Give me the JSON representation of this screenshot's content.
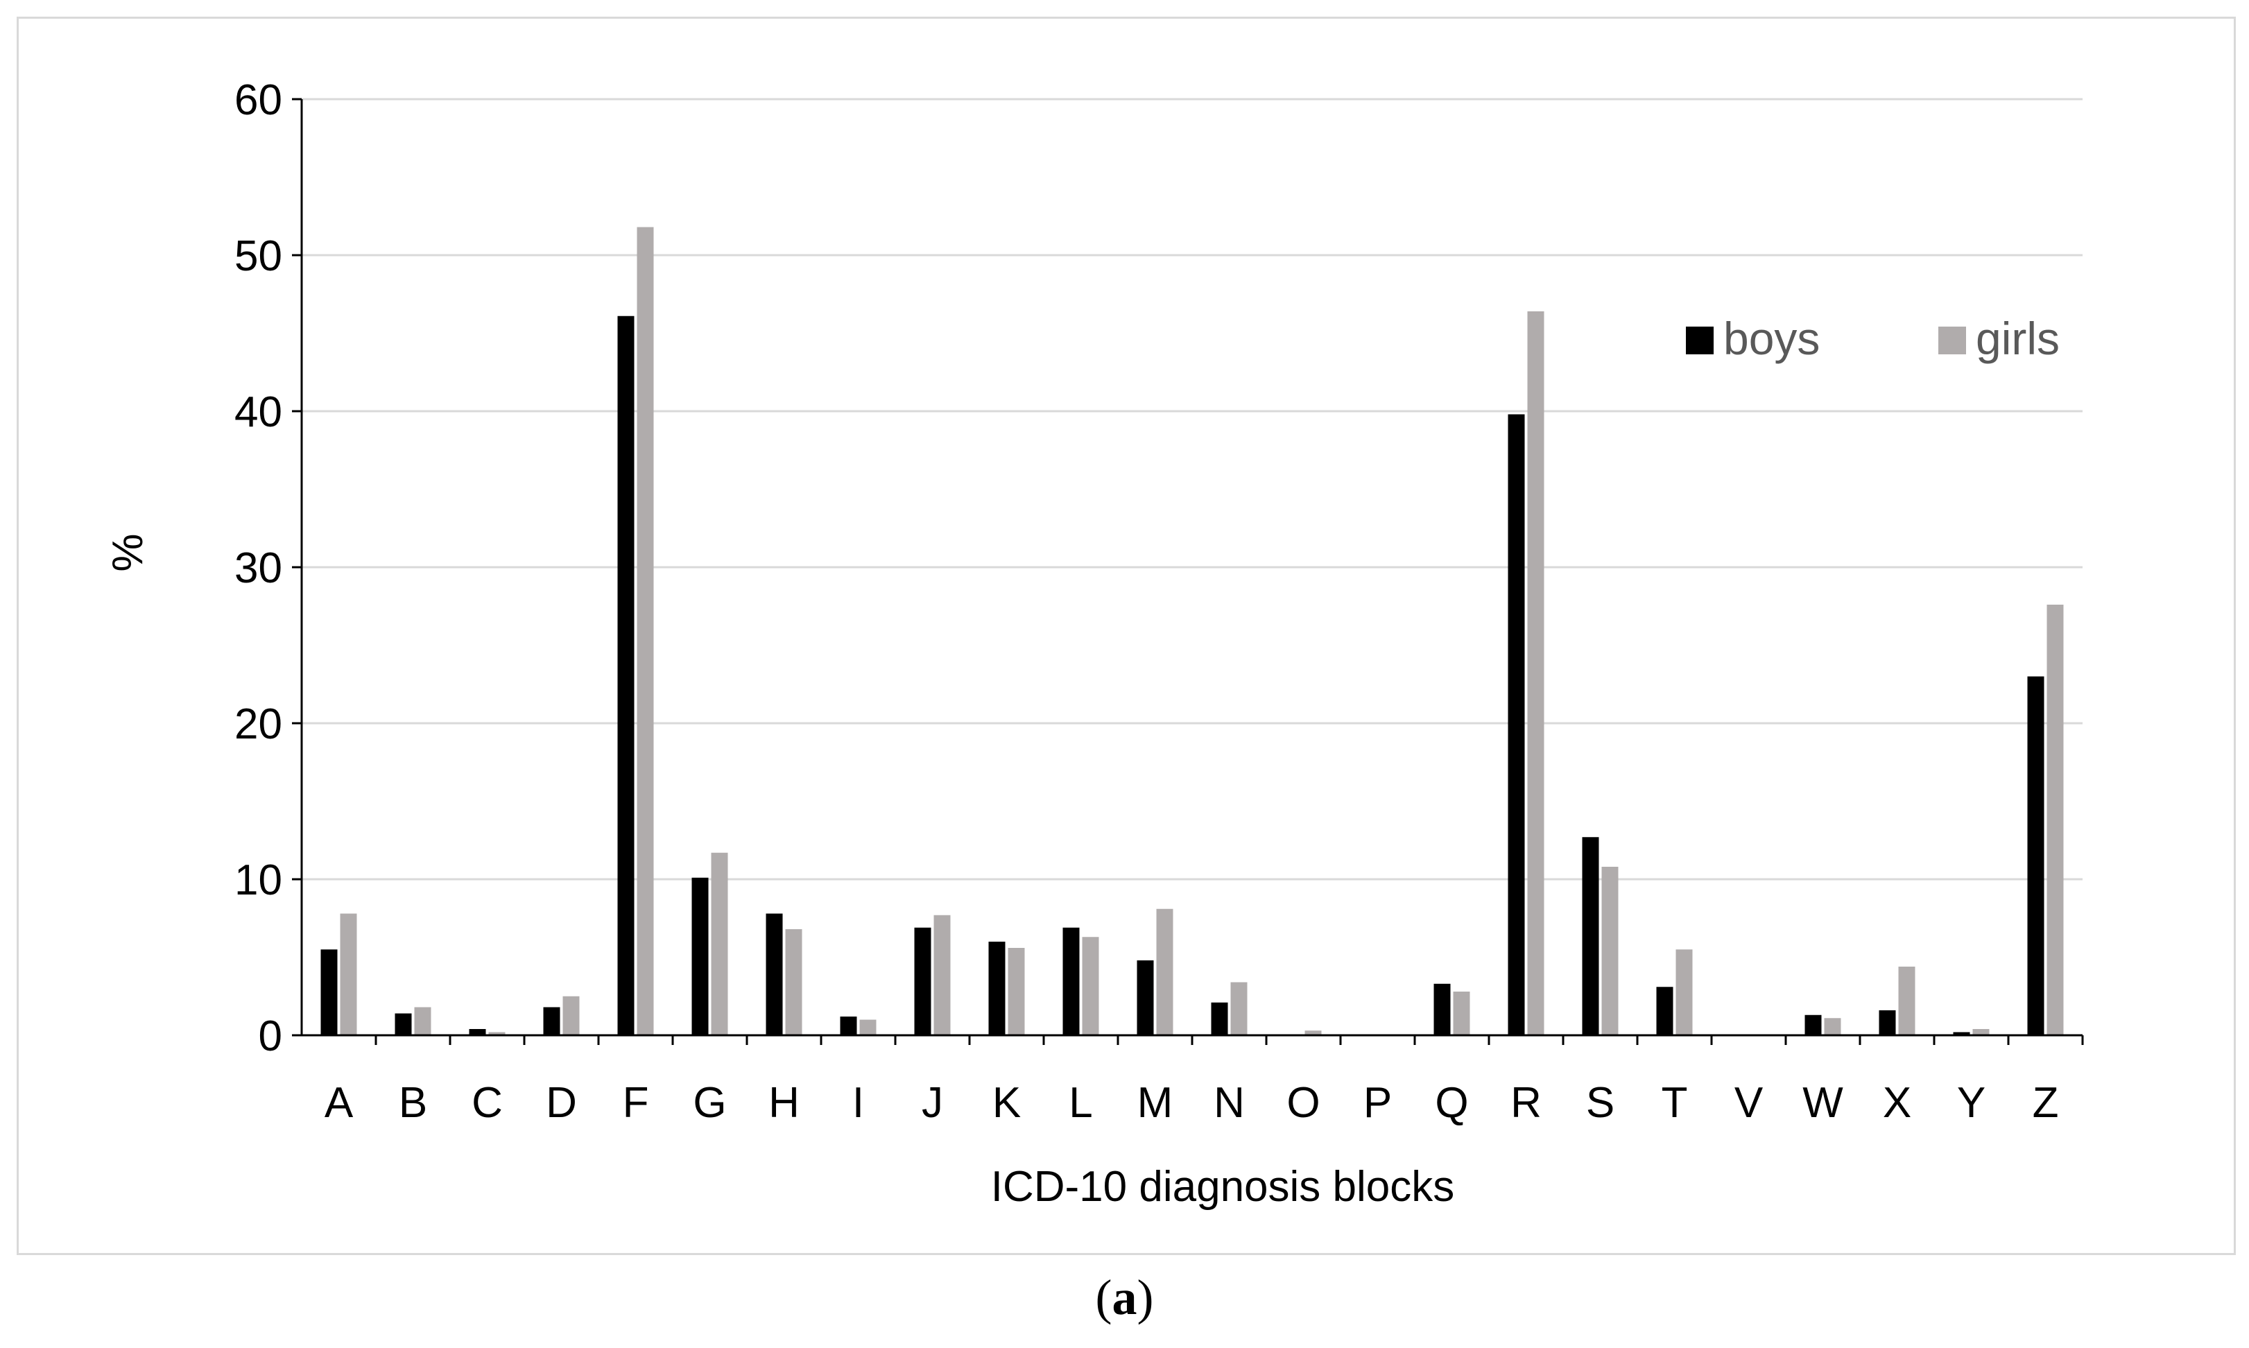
{
  "chart_data": {
    "type": "bar",
    "xlabel": "ICD-10 diagnosis blocks",
    "ylabel": "%",
    "ylim": [
      0,
      60
    ],
    "yticks": [
      0,
      10,
      20,
      30,
      40,
      50,
      60
    ],
    "grid": true,
    "legend_position": "top-right",
    "categories": [
      "A",
      "B",
      "C",
      "D",
      "F",
      "G",
      "H",
      "I",
      "J",
      "K",
      "L",
      "M",
      "N",
      "O",
      "P",
      "Q",
      "R",
      "S",
      "T",
      "V",
      "W",
      "X",
      "Y",
      "Z"
    ],
    "series": [
      {
        "name": "boys",
        "color": "#000000",
        "values": [
          5.5,
          1.4,
          0.4,
          1.8,
          46.1,
          10.1,
          7.8,
          1.2,
          6.9,
          6.0,
          6.9,
          4.8,
          2.1,
          0,
          0,
          3.3,
          39.8,
          12.7,
          3.1,
          0,
          1.3,
          1.6,
          0.2,
          23.0
        ]
      },
      {
        "name": "girls",
        "color": "#b0acac",
        "values": [
          7.8,
          1.8,
          0.2,
          2.5,
          51.8,
          11.7,
          6.8,
          1.0,
          7.7,
          5.6,
          6.3,
          8.1,
          3.4,
          0.3,
          0,
          2.8,
          46.4,
          10.8,
          5.5,
          0,
          1.1,
          4.4,
          0.4,
          27.6
        ]
      }
    ]
  },
  "caption": {
    "open": "(",
    "letter": "a",
    "close": ")"
  }
}
